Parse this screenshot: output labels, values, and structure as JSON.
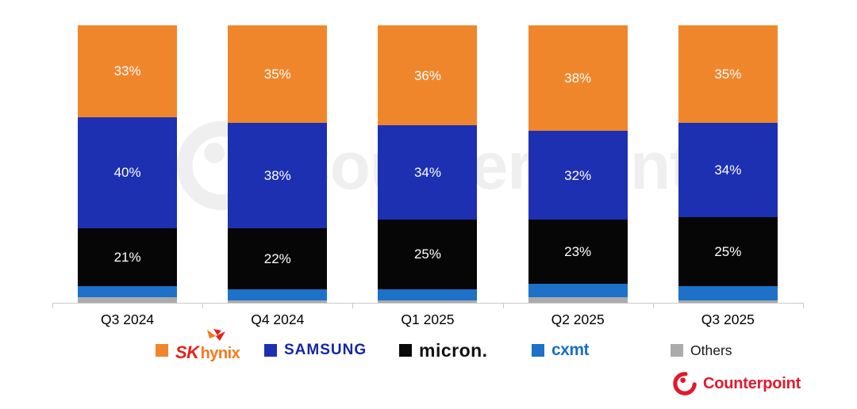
{
  "chart_data": {
    "type": "bar",
    "stacked": true,
    "title": "",
    "xlabel": "",
    "ylabel": "",
    "ylim": [
      0,
      100
    ],
    "grid": false,
    "legend_position": "bottom",
    "value_suffix": "%",
    "categories": [
      "Q3 2024",
      "Q4 2024",
      "Q1 2025",
      "Q2 2025",
      "Q3 2025"
    ],
    "series": [
      {
        "name": "SK hynix",
        "color": "#F0862C",
        "values": [
          33,
          35,
          36,
          38,
          35
        ],
        "labels_shown": true
      },
      {
        "name": "SAMSUNG",
        "color": "#1D30B2",
        "values": [
          40,
          38,
          34,
          32,
          34
        ],
        "labels_shown": true
      },
      {
        "name": "micron",
        "color": "#060606",
        "values": [
          21,
          22,
          25,
          23,
          25
        ],
        "labels_shown": true
      },
      {
        "name": "CXMT",
        "color": "#1D71C8",
        "values": [
          4,
          4,
          4,
          5,
          5
        ],
        "labels_shown": false
      },
      {
        "name": "Others",
        "color": "#ABABAB",
        "values": [
          2,
          1,
          1,
          2,
          1
        ],
        "labels_shown": false
      }
    ],
    "stack_order_top_to_bottom": [
      "SK hynix",
      "SAMSUNG",
      "micron",
      "CXMT",
      "Others"
    ]
  },
  "legend": {
    "items": [
      {
        "id": "sk-hynix",
        "swatch": "#F0862C",
        "sk": "SK",
        "hynix": "hynix"
      },
      {
        "id": "samsung",
        "swatch": "#1D30B2",
        "text": "SAMSUNG"
      },
      {
        "id": "micron",
        "swatch": "#0A0A0A",
        "text": "micron."
      },
      {
        "id": "cxmt",
        "swatch": "#1D71C8",
        "text": "cxmt"
      },
      {
        "id": "others",
        "swatch": "#ABABAB",
        "text": "Others"
      }
    ]
  },
  "watermark": {
    "text": "Counterpoint"
  },
  "brand": {
    "text": "Counterpoint",
    "color": "#E01A2E"
  }
}
